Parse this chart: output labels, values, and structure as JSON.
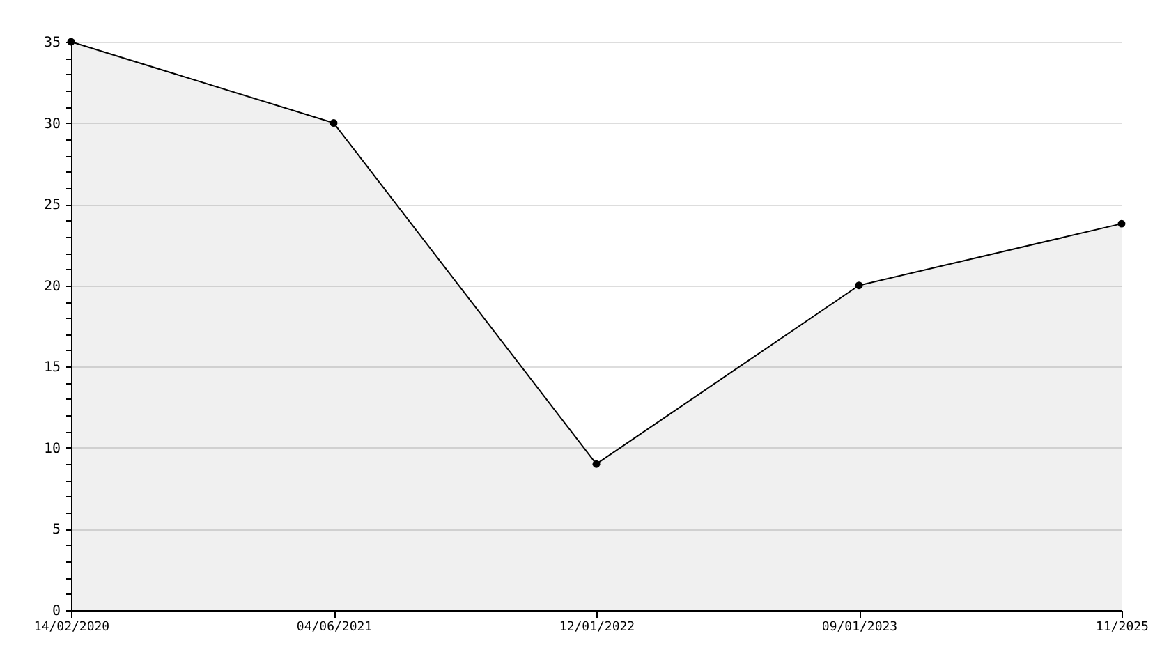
{
  "chart_data": {
    "type": "area",
    "categories": [
      "14/02/2020",
      "04/06/2021",
      "12/01/2022",
      "09/01/2023",
      "11/2025"
    ],
    "series": [
      {
        "color": "#000000",
        "values": [
          35,
          30,
          9,
          20,
          23.8
        ]
      }
    ],
    "ylim": [
      0,
      35
    ],
    "yticks": [
      0,
      {
        "value": 1,
        "label": null
      },
      {
        "value": 2,
        "label": null
      },
      {
        "value": 3,
        "label": null
      },
      {
        "value": 4,
        "label": null
      },
      5,
      {
        "value": 6,
        "label": null
      },
      {
        "value": 7,
        "label": null
      },
      {
        "value": 8,
        "label": null
      },
      {
        "value": 9,
        "label": null
      },
      10,
      {
        "value": 11,
        "label": null
      },
      {
        "value": 12,
        "label": null
      },
      {
        "value": 13,
        "label": null
      },
      {
        "value": 14,
        "label": null
      },
      15,
      {
        "value": 16,
        "label": null
      },
      {
        "value": 17,
        "label": null
      },
      {
        "value": 18,
        "label": null
      },
      {
        "value": 19,
        "label": null
      },
      20,
      {
        "value": 21,
        "label": null
      },
      {
        "value": 22,
        "label": null
      },
      {
        "value": 23,
        "label": null
      },
      {
        "value": 24,
        "label": null
      },
      25,
      {
        "value": 26,
        "label": null
      },
      {
        "value": 27,
        "label": null
      },
      {
        "value": 28,
        "label": null
      },
      {
        "value": 29,
        "label": null
      },
      30,
      {
        "value": 31,
        "label": null
      },
      {
        "value": 32,
        "label": null
      },
      {
        "value": 33,
        "label": null
      },
      {
        "value": 34,
        "label": null
      },
      35
    ],
    "grid": "y",
    "marker": "circle",
    "line_style": "solid"
  }
}
